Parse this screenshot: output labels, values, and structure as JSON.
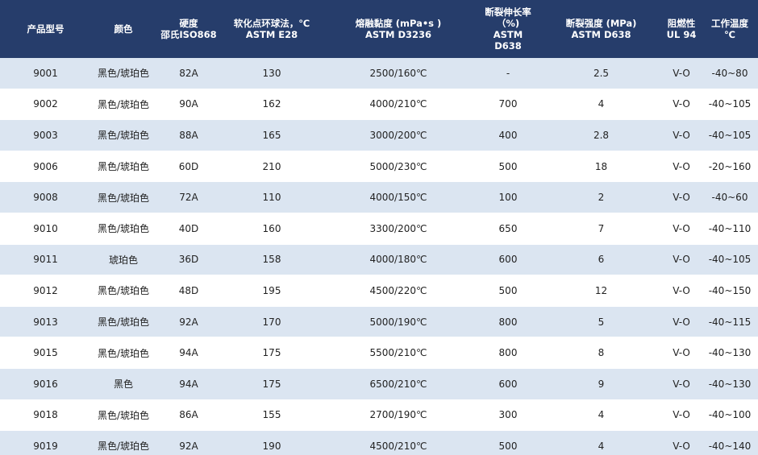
{
  "table": {
    "headers": [
      "产品型号",
      "颜色",
      "硬度\n邵氏ISO868",
      "软化点环球法，℃\nASTM E28",
      "熔融黏度 (mPa•s )\nASTM D3236",
      "断裂伸长率（%)\nASTM D638",
      "断裂强度 (MPa)\nASTM D638",
      "阻燃性\nUL 94",
      "工作温度\n℃"
    ],
    "rows": [
      [
        "9001",
        "黑色/琥珀色",
        "82A",
        "130",
        "2500/160℃",
        "-",
        "2.5",
        "V-O",
        "-40~80"
      ],
      [
        "9002",
        "黑色/琥珀色",
        "90A",
        "162",
        "4000/210℃",
        "700",
        "4",
        "V-O",
        "-40~105"
      ],
      [
        "9003",
        "黑色/琥珀色",
        "88A",
        "165",
        "3000/200℃",
        "400",
        "2.8",
        "V-O",
        "-40~105"
      ],
      [
        "9006",
        "黑色/琥珀色",
        "60D",
        "210",
        "5000/230℃",
        "500",
        "18",
        "V-O",
        "-20~160"
      ],
      [
        "9008",
        "黑色/琥珀色",
        "72A",
        "110",
        "4000/150℃",
        "100",
        "2",
        "V-O",
        "-40~60"
      ],
      [
        "9010",
        "黑色/琥珀色",
        "40D",
        "160",
        "3300/200℃",
        "650",
        "7",
        "V-O",
        "-40~110"
      ],
      [
        "9011",
        "琥珀色",
        "36D",
        "158",
        "4000/180℃",
        "600",
        "6",
        "V-O",
        "-40~105"
      ],
      [
        "9012",
        "黑色/琥珀色",
        "48D",
        "195",
        "4500/220℃",
        "500",
        "12",
        "V-O",
        "-40~150"
      ],
      [
        "9013",
        "黑色/琥珀色",
        "92A",
        "170",
        "5000/190℃",
        "800",
        "5",
        "V-O",
        "-40~115"
      ],
      [
        "9015",
        "黑色/琥珀色",
        "94A",
        "175",
        "5500/210℃",
        "800",
        "8",
        "V-O",
        "-40~130"
      ],
      [
        "9016",
        "黑色",
        "94A",
        "175",
        "6500/210℃",
        "600",
        "9",
        "V-O",
        "-40~130"
      ],
      [
        "9018",
        "黑色/琥珀色",
        "86A",
        "155",
        "2700/190℃",
        "300",
        "4",
        "V-O",
        "-40~100"
      ],
      [
        "9019",
        "黑色/琥珀色",
        "92A",
        "190",
        "4500/210℃",
        "500",
        "4",
        "V-O",
        "-40~140"
      ]
    ]
  },
  "colors": {
    "header_bg": "#263d6b",
    "header_text": "#ffffff",
    "row_stripe": "#dbe5f1",
    "row_plain": "#ffffff"
  }
}
